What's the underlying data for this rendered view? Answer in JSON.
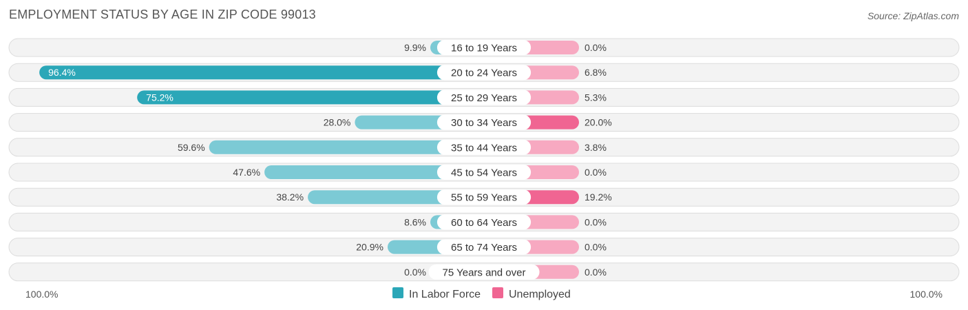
{
  "header": {
    "title": "EMPLOYMENT STATUS BY AGE IN ZIP CODE 99013",
    "source": "Source: ZipAtlas.com"
  },
  "colors": {
    "labor_force_strong": "#2ba7b8",
    "labor_force_light": "#7ccad5",
    "unemployed_strong": "#f06592",
    "unemployed_light": "#f7a9c1"
  },
  "chart_data": {
    "type": "bar",
    "title": "EMPLOYMENT STATUS BY AGE IN ZIP CODE 99013",
    "categories": [
      "16 to 19 Years",
      "20 to 24 Years",
      "25 to 29 Years",
      "30 to 34 Years",
      "35 to 44 Years",
      "45 to 54 Years",
      "55 to 59 Years",
      "60 to 64 Years",
      "65 to 74 Years",
      "75 Years and over"
    ],
    "series": [
      {
        "name": "In Labor Force",
        "values": [
          9.9,
          96.4,
          75.2,
          28.0,
          59.6,
          47.6,
          38.2,
          8.6,
          20.9,
          0.0
        ],
        "labels": [
          "9.9%",
          "96.4%",
          "75.2%",
          "28.0%",
          "59.6%",
          "47.6%",
          "38.2%",
          "8.6%",
          "20.9%",
          "0.0%"
        ]
      },
      {
        "name": "Unemployed",
        "values": [
          0.0,
          6.8,
          5.3,
          20.0,
          3.8,
          0.0,
          19.2,
          0.0,
          0.0,
          0.0
        ],
        "labels": [
          "0.0%",
          "6.8%",
          "5.3%",
          "20.0%",
          "3.8%",
          "0.0%",
          "19.2%",
          "0.0%",
          "0.0%",
          "0.0%"
        ]
      }
    ],
    "axis_left_label": "100.0%",
    "axis_right_label": "100.0%",
    "xlim": [
      -100,
      100
    ],
    "legend_position": "bottom-center",
    "grid": false
  }
}
